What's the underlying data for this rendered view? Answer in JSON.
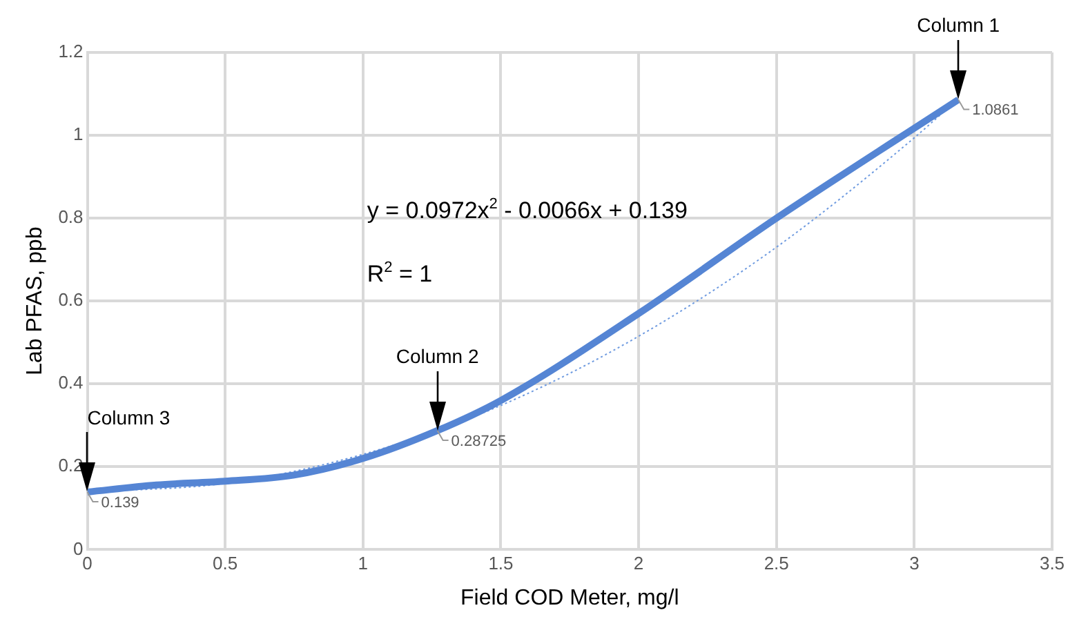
{
  "chart_data": {
    "type": "line",
    "xlabel": "Field COD Meter, mg/l",
    "ylabel": "Lab PFAS, ppb",
    "xlim": [
      0,
      3.5
    ],
    "xticks": [
      0,
      0.5,
      1,
      1.5,
      2,
      2.5,
      3,
      3.5
    ],
    "ylim": [
      0,
      1.2
    ],
    "yticks": [
      0,
      0.2,
      0.4,
      0.6,
      0.8,
      1,
      1.2
    ],
    "grid": true,
    "legend": false,
    "series": [
      {
        "color": "#5585d4",
        "x": [
          0,
          0.25,
          0.5,
          0.75,
          1,
          1.27,
          1.5,
          2,
          2.5,
          3.16
        ],
        "values": [
          0.139,
          0.156,
          0.165,
          0.18,
          0.22,
          0.28725,
          0.36,
          0.57,
          0.8,
          1.0861
        ],
        "value_labels": [
          "0.139",
          null,
          null,
          null,
          null,
          "0.28725",
          null,
          null,
          null,
          "1.0861"
        ]
      },
      {
        "color": "#6f9be0",
        "line_style": "dotted",
        "x": [
          0,
          0.5,
          1,
          1.5,
          2,
          2.5,
          3,
          3.16
        ],
        "values": [
          0.139,
          0.16,
          0.23,
          0.348,
          0.515,
          0.73,
          0.994,
          1.089
        ]
      }
    ],
    "annotations": [
      "Column 3",
      "Column 2",
      "Column 1",
      "y = 0.0972x$^{2}$ - 0.0066x + 0.139",
      "R$^{2}$ = 1"
    ]
  }
}
